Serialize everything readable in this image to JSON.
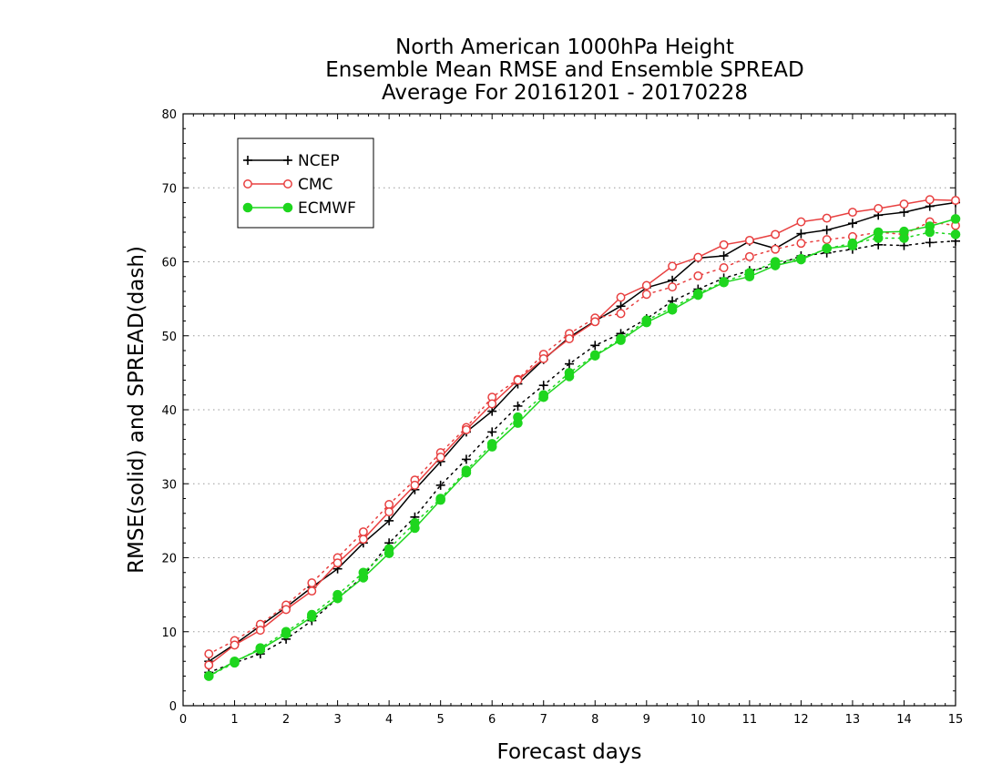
{
  "chart_data": {
    "type": "line",
    "title_lines": [
      "North American 1000hPa Height",
      "Ensemble Mean RMSE and Ensemble SPREAD",
      "Average For 20161201 - 20170228"
    ],
    "xlabel": "Forecast days",
    "ylabel": "RMSE(solid) and SPREAD(dash)",
    "xlim": [
      0,
      15
    ],
    "ylim": [
      0,
      80
    ],
    "xticks": [
      0,
      1,
      2,
      3,
      4,
      5,
      6,
      7,
      8,
      9,
      10,
      11,
      12,
      13,
      14,
      15
    ],
    "yticks": [
      0,
      10,
      20,
      30,
      40,
      50,
      60,
      70,
      80
    ],
    "grid": "horizontal dotted",
    "legend_position": "top-left",
    "x": [
      0.5,
      1,
      1.5,
      2,
      2.5,
      3,
      3.5,
      4,
      4.5,
      5,
      5.5,
      6,
      6.5,
      7,
      7.5,
      8,
      8.5,
      9,
      9.5,
      10,
      10.5,
      11,
      11.5,
      12,
      12.5,
      13,
      13.5,
      14,
      14.5,
      15
    ],
    "series": [
      {
        "name": "NCEP",
        "color": "#000000",
        "marker": "plus",
        "rmse": [
          6.0,
          8.3,
          10.8,
          13.3,
          16.0,
          18.5,
          22.0,
          25.0,
          29.2,
          33.0,
          37.0,
          39.8,
          43.5,
          46.8,
          49.8,
          52.0,
          54.0,
          56.5,
          57.5,
          60.5,
          60.8,
          62.8,
          61.8,
          63.8,
          64.3,
          65.2,
          66.3,
          66.7,
          67.5,
          68.0
        ],
        "spread": [
          4.5,
          5.8,
          7.0,
          9.0,
          11.5,
          14.5,
          17.5,
          22.0,
          25.5,
          29.8,
          33.3,
          37.0,
          40.5,
          43.3,
          46.2,
          48.7,
          50.3,
          52.3,
          54.7,
          56.3,
          57.8,
          58.8,
          59.5,
          60.8,
          61.2,
          61.7,
          62.3,
          62.2,
          62.6,
          62.8
        ]
      },
      {
        "name": "CMC",
        "color": "#e84040",
        "marker": "open-circle",
        "rmse": [
          5.5,
          8.2,
          10.2,
          13.0,
          15.5,
          19.3,
          22.5,
          26.2,
          29.8,
          33.6,
          37.3,
          40.8,
          44.0,
          46.9,
          49.6,
          51.9,
          55.2,
          56.8,
          59.4,
          60.6,
          62.3,
          62.9,
          63.7,
          65.4,
          65.9,
          66.7,
          67.2,
          67.8,
          68.4,
          68.3
        ],
        "spread": [
          7.0,
          8.8,
          11.0,
          13.6,
          16.6,
          20.0,
          23.5,
          27.2,
          30.5,
          34.2,
          37.6,
          41.7,
          44.1,
          47.5,
          50.3,
          52.4,
          53.0,
          55.6,
          56.6,
          58.1,
          59.2,
          60.7,
          61.7,
          62.5,
          63.0,
          63.4,
          64.0,
          63.7,
          65.4,
          64.9
        ]
      },
      {
        "name": "ECMWF",
        "color": "#1ed61e",
        "marker": "filled-circle",
        "rmse": [
          4.0,
          6.0,
          7.6,
          9.7,
          12.0,
          14.5,
          17.3,
          20.6,
          24.0,
          27.8,
          31.5,
          35.0,
          38.2,
          41.7,
          44.5,
          47.3,
          49.4,
          51.8,
          53.5,
          55.5,
          57.2,
          58.0,
          59.5,
          60.3,
          61.8,
          62.2,
          64.0,
          64.1,
          64.8,
          65.8
        ],
        "spread": [
          4.0,
          5.8,
          7.8,
          10.0,
          12.3,
          15.0,
          18.0,
          21.2,
          24.7,
          28.0,
          31.8,
          35.4,
          39.0,
          42.0,
          45.0,
          47.4,
          49.6,
          52.1,
          53.8,
          55.7,
          57.3,
          58.5,
          60.0,
          60.4,
          61.8,
          62.5,
          63.2,
          63.2,
          64.0,
          63.7
        ]
      }
    ]
  }
}
